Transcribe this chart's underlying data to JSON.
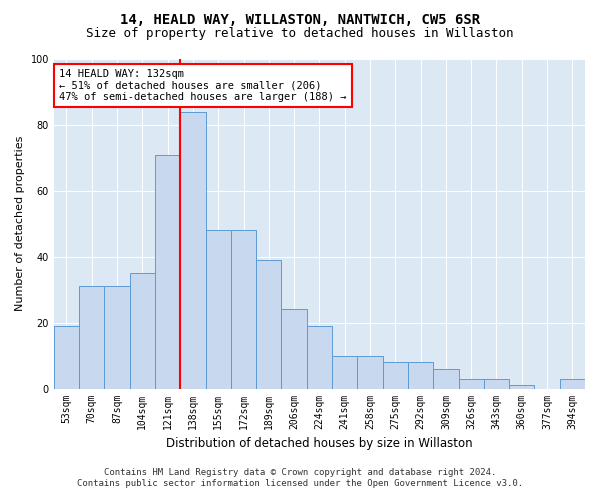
{
  "title1": "14, HEALD WAY, WILLASTON, NANTWICH, CW5 6SR",
  "title2": "Size of property relative to detached houses in Willaston",
  "xlabel": "Distribution of detached houses by size in Willaston",
  "ylabel": "Number of detached properties",
  "categories": [
    "53sqm",
    "70sqm",
    "87sqm",
    "104sqm",
    "121sqm",
    "138sqm",
    "155sqm",
    "172sqm",
    "189sqm",
    "206sqm",
    "224sqm",
    "241sqm",
    "258sqm",
    "275sqm",
    "292sqm",
    "309sqm",
    "326sqm",
    "343sqm",
    "360sqm",
    "377sqm",
    "394sqm"
  ],
  "values": [
    19,
    31,
    31,
    35,
    71,
    84,
    48,
    48,
    39,
    24,
    19,
    10,
    10,
    8,
    8,
    6,
    3,
    3,
    1,
    0,
    3
  ],
  "bar_color": "#c8d9ef",
  "bar_edge_color": "#5b9bd5",
  "vline_color": "red",
  "vline_pos": 4.5,
  "annotation_text": "14 HEALD WAY: 132sqm\n← 51% of detached houses are smaller (206)\n47% of semi-detached houses are larger (188) →",
  "annotation_box_color": "white",
  "annotation_box_edge": "red",
  "ylim": [
    0,
    100
  ],
  "yticks": [
    0,
    20,
    40,
    60,
    80,
    100
  ],
  "footnote1": "Contains HM Land Registry data © Crown copyright and database right 2024.",
  "footnote2": "Contains public sector information licensed under the Open Government Licence v3.0.",
  "plot_background": "#dce9f5",
  "title1_fontsize": 10,
  "title2_fontsize": 9,
  "xlabel_fontsize": 8.5,
  "ylabel_fontsize": 8,
  "tick_fontsize": 7,
  "annotation_fontsize": 7.5,
  "footnote_fontsize": 6.5
}
